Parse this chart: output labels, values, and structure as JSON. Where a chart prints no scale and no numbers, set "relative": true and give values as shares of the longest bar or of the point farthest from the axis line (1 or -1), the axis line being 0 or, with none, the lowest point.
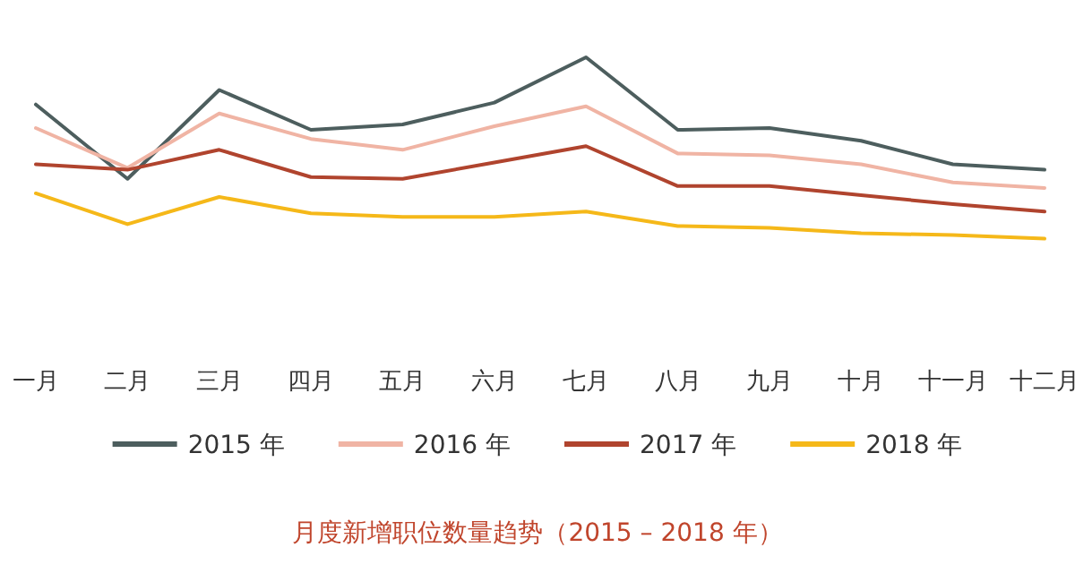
{
  "chart_data": {
    "type": "line",
    "relative": true,
    "title": "月度新增职位数量趋势（2015 – 2018 年）",
    "legend": "bottom",
    "categories": [
      "一月",
      "二月",
      "三月",
      "四月",
      "五月",
      "六月",
      "七月",
      "八月",
      "九月",
      "十月",
      "十一月",
      "十二月"
    ],
    "series": [
      {
        "name": "2015 年",
        "color": "#4d5e5e",
        "values": [
          0.74,
          0.33,
          0.82,
          0.6,
          0.63,
          0.75,
          1.0,
          0.6,
          0.61,
          0.54,
          0.41,
          0.38
        ]
      },
      {
        "name": "2016 年",
        "color": "#f0b4a4",
        "values": [
          0.61,
          0.39,
          0.69,
          0.55,
          0.49,
          0.62,
          0.73,
          0.47,
          0.46,
          0.41,
          0.31,
          0.28
        ]
      },
      {
        "name": "2017 年",
        "color": "#b0442e",
        "values": [
          0.41,
          0.38,
          0.49,
          0.34,
          0.33,
          0.42,
          0.51,
          0.29,
          0.29,
          0.24,
          0.19,
          0.15
        ]
      },
      {
        "name": "2018 年",
        "color": "#f5b819",
        "values": [
          0.25,
          0.08,
          0.23,
          0.14,
          0.12,
          0.12,
          0.15,
          0.07,
          0.06,
          0.03,
          0.02,
          0.0
        ]
      }
    ]
  }
}
